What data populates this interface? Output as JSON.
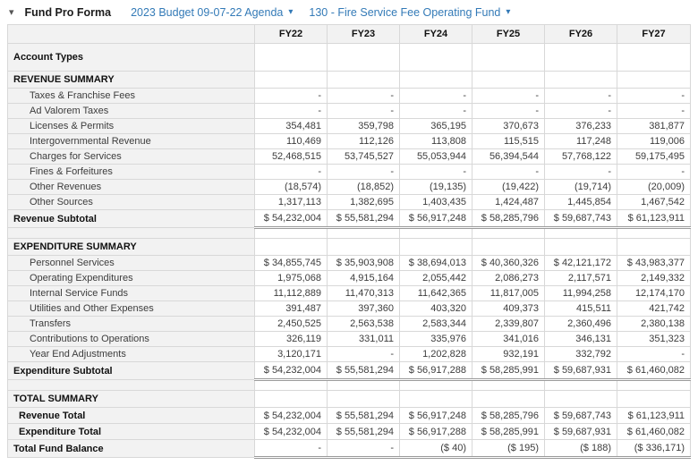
{
  "toolbar": {
    "collapse_icon": "collapse-arrow",
    "title": "Fund Pro Forma",
    "budget_dropdown": "2023 Budget 09-07-22 Agenda",
    "fund_dropdown": "130 - Fire Service Fee Operating Fund",
    "caret": "▾"
  },
  "colors": {
    "link_blue": "#337ab7",
    "left_column_bg": "#f2f2f2",
    "border_light": "#d8d8d8",
    "border_dark": "#9a9a9a"
  },
  "table": {
    "columns": [
      "FY22",
      "FY23",
      "FY24",
      "FY25",
      "FY26",
      "FY27"
    ],
    "rows": [
      {
        "label": "Account Types",
        "style": "account-types",
        "values": [
          "",
          "",
          "",
          "",
          "",
          ""
        ]
      },
      {
        "label": "REVENUE SUMMARY",
        "style": "section",
        "values": [
          "",
          "",
          "",
          "",
          "",
          ""
        ]
      },
      {
        "label": "Taxes & Franchise Fees",
        "style": "detail",
        "values": [
          "-",
          "-",
          "-",
          "-",
          "-",
          "-"
        ]
      },
      {
        "label": "Ad Valorem Taxes",
        "style": "detail",
        "values": [
          "-",
          "-",
          "-",
          "-",
          "-",
          "-"
        ]
      },
      {
        "label": "Licenses & Permits",
        "style": "detail",
        "values": [
          "354,481",
          "359,798",
          "365,195",
          "370,673",
          "376,233",
          "381,877"
        ]
      },
      {
        "label": "Intergovernmental Revenue",
        "style": "detail",
        "values": [
          "110,469",
          "112,126",
          "113,808",
          "115,515",
          "117,248",
          "119,006"
        ]
      },
      {
        "label": "Charges for Services",
        "style": "detail",
        "values": [
          "52,468,515",
          "53,745,527",
          "55,053,944",
          "56,394,544",
          "57,768,122",
          "59,175,495"
        ]
      },
      {
        "label": "Fines & Forfeitures",
        "style": "detail",
        "values": [
          "-",
          "-",
          "-",
          "-",
          "-",
          "-"
        ]
      },
      {
        "label": "Other Revenues",
        "style": "detail",
        "values": [
          "(18,574)",
          "(18,852)",
          "(19,135)",
          "(19,422)",
          "(19,714)",
          "(20,009)"
        ]
      },
      {
        "label": "Other Sources",
        "style": "detail",
        "values": [
          "1,317,113",
          "1,382,695",
          "1,403,435",
          "1,424,487",
          "1,445,854",
          "1,467,542"
        ]
      },
      {
        "label": "Revenue Subtotal",
        "style": "subtotal",
        "values": [
          "$ 54,232,004",
          "$ 55,581,294",
          "$ 56,917,248",
          "$ 58,285,796",
          "$ 59,687,743",
          "$ 61,123,911"
        ]
      },
      {
        "label": "",
        "style": "spacer",
        "values": [
          "",
          "",
          "",
          "",
          "",
          ""
        ]
      },
      {
        "label": "EXPENDITURE SUMMARY",
        "style": "section",
        "values": [
          "",
          "",
          "",
          "",
          "",
          ""
        ]
      },
      {
        "label": "Personnel Services",
        "style": "detail",
        "values": [
          "$ 34,855,745",
          "$ 35,903,908",
          "$ 38,694,013",
          "$ 40,360,326",
          "$ 42,121,172",
          "$ 43,983,377"
        ]
      },
      {
        "label": "Operating Expenditures",
        "style": "detail",
        "values": [
          "1,975,068",
          "4,915,164",
          "2,055,442",
          "2,086,273",
          "2,117,571",
          "2,149,332"
        ]
      },
      {
        "label": "Internal Service Funds",
        "style": "detail",
        "values": [
          "11,112,889",
          "11,470,313",
          "11,642,365",
          "11,817,005",
          "11,994,258",
          "12,174,170"
        ]
      },
      {
        "label": "Utilities and Other Expenses",
        "style": "detail",
        "values": [
          "391,487",
          "397,360",
          "403,320",
          "409,373",
          "415,511",
          "421,742"
        ]
      },
      {
        "label": "Transfers",
        "style": "detail",
        "values": [
          "2,450,525",
          "2,563,538",
          "2,583,344",
          "2,339,807",
          "2,360,496",
          "2,380,138"
        ]
      },
      {
        "label": "Contributions to Operations",
        "style": "detail",
        "values": [
          "326,119",
          "331,011",
          "335,976",
          "341,016",
          "346,131",
          "351,323"
        ]
      },
      {
        "label": "Year End Adjustments",
        "style": "detail",
        "values": [
          "3,120,171",
          "-",
          "1,202,828",
          "932,191",
          "332,792",
          "-"
        ]
      },
      {
        "label": "Expenditure Subtotal",
        "style": "subtotal",
        "values": [
          "$ 54,232,004",
          "$ 55,581,294",
          "$ 56,917,288",
          "$ 58,285,991",
          "$ 59,687,931",
          "$ 61,460,082"
        ]
      },
      {
        "label": "",
        "style": "spacer",
        "values": [
          "",
          "",
          "",
          "",
          "",
          ""
        ]
      },
      {
        "label": "TOTAL SUMMARY",
        "style": "section",
        "values": [
          "",
          "",
          "",
          "",
          "",
          ""
        ]
      },
      {
        "label": "Revenue Total",
        "style": "total",
        "values": [
          "$ 54,232,004",
          "$ 55,581,294",
          "$ 56,917,248",
          "$ 58,285,796",
          "$ 59,687,743",
          "$ 61,123,911"
        ]
      },
      {
        "label": "Expenditure Total",
        "style": "total",
        "values": [
          "$ 54,232,004",
          "$ 55,581,294",
          "$ 56,917,288",
          "$ 58,285,991",
          "$ 59,687,931",
          "$ 61,460,082"
        ]
      },
      {
        "label": "Total Fund Balance",
        "style": "fund-balance",
        "values": [
          "-",
          "-",
          "($ 40)",
          "($ 195)",
          "($ 188)",
          "($ 336,171)"
        ]
      }
    ]
  }
}
